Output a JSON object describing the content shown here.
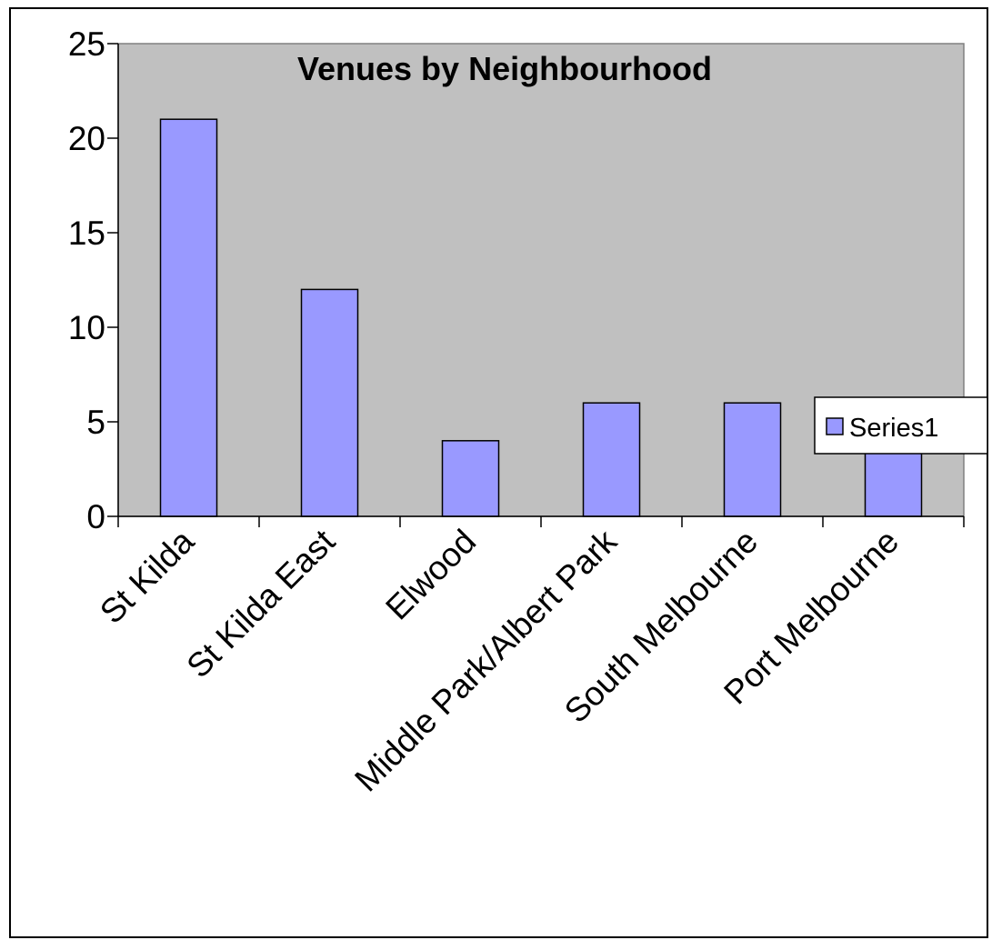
{
  "chart_data": {
    "type": "bar",
    "title": "Venues by Neighbourhood",
    "xlabel": "",
    "ylabel": "",
    "categories": [
      "St Kilda",
      "St Kilda East",
      "Elwood",
      "Middle Park/Albert Park",
      "South Melbourne",
      "Port Melbourne"
    ],
    "series": [
      {
        "name": "Series1",
        "values": [
          21,
          12,
          4,
          6,
          6,
          4
        ]
      }
    ],
    "ylim": [
      0,
      25
    ],
    "yticks": [
      0,
      5,
      10,
      15,
      20,
      25
    ],
    "grid": false,
    "legend_position": "right",
    "colors": {
      "bar_fill": "#9999ff",
      "plot_background": "#c0c0c0",
      "axis": "#000000"
    }
  }
}
